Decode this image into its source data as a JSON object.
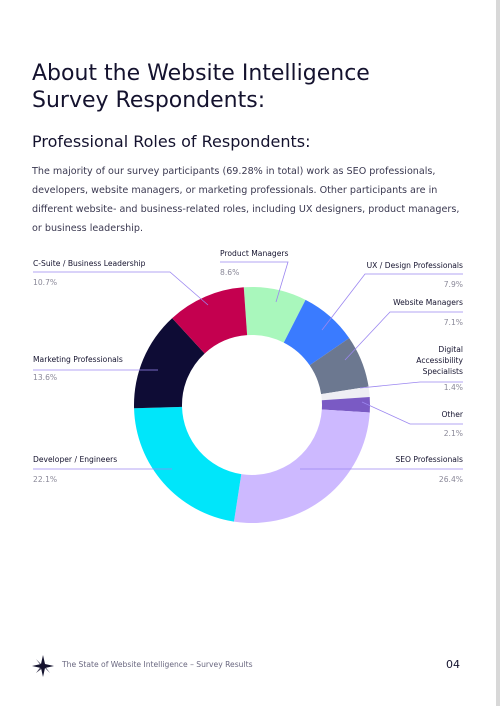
{
  "header": {
    "title": "About the Website Intelligence Survey Respondents:",
    "subtitle": "Professional Roles of Respondents:",
    "intro": "The majority of our survey participants (69.28% in total) work as SEO professionals, developers, website managers, or marketing professionals. Other participants are in different website- and business-related roles, including UX designers, product managers, or business leadership."
  },
  "chart_data": {
    "type": "donut",
    "categories": [
      "Product Managers",
      "UX / Design Professionals",
      "Website Managers",
      "Digital Accessibility Specialists",
      "Other",
      "SEO Professionals",
      "Developer / Engineers",
      "Marketing Professionals",
      "C-Suite / Business Leadership"
    ],
    "values": [
      8.6,
      7.9,
      7.1,
      1.4,
      2.1,
      26.4,
      22.1,
      13.6,
      10.7
    ],
    "value_labels": [
      "8.6%",
      "7.9%",
      "7.1%",
      "1.4%",
      "2.1%",
      "26.4%",
      "22.1%",
      "13.6%",
      "10.7%"
    ],
    "colors": [
      "#a9f7bc",
      "#3a7bff",
      "#6c7890",
      "#eeeef4",
      "#7a5ac4",
      "#cdb9ff",
      "#00e6fa",
      "#0e0c35",
      "#c4004f"
    ]
  },
  "footer": {
    "text": "The State of Website Intelligence – Survey Results",
    "page": "04"
  }
}
